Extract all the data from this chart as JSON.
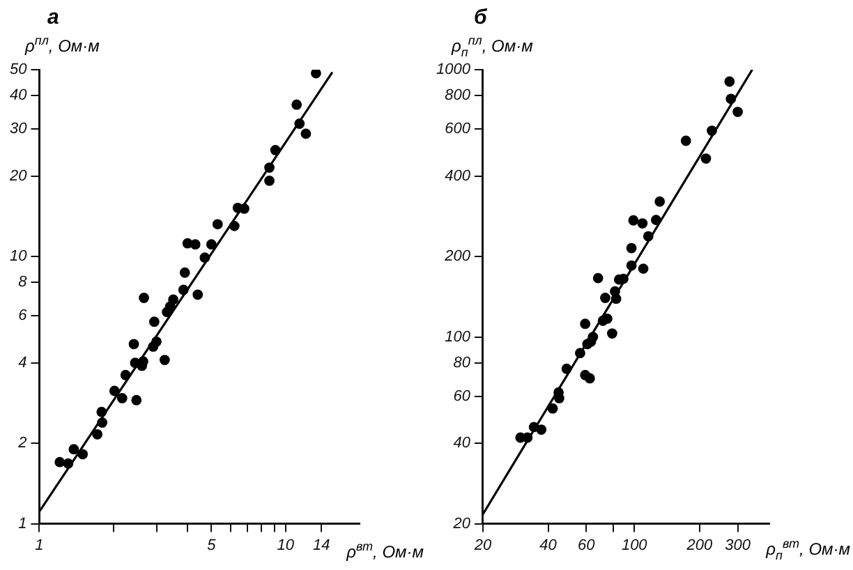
{
  "chart_data": [
    {
      "type": "scatter",
      "title": "а",
      "xlabel": "ρ$^{вт}$, Ом·м",
      "ylabel": "ρ$^{пл}$, Ом·м",
      "log": "xy",
      "marker": "circle",
      "xlim": [
        1,
        20
      ],
      "ylim": [
        1,
        50
      ],
      "xticks": [
        1,
        {
          "value": 2,
          "label": null
        },
        {
          "value": 3,
          "label": null
        },
        {
          "value": 4,
          "label": null
        },
        5,
        {
          "value": 6,
          "label": null
        },
        {
          "value": 7,
          "label": null
        },
        {
          "value": 8,
          "label": null
        },
        {
          "value": 9,
          "label": null
        },
        10,
        14
      ],
      "yticks": [
        1,
        2,
        4,
        6,
        8,
        10,
        20,
        30,
        40,
        50
      ],
      "series": [
        {
          "type": "scatter",
          "color": "#000000",
          "x": [
            13.3,
            11.1,
            11.4,
            12.1,
            9.1,
            8.6,
            8.6,
            6.4,
            6.8,
            6.2,
            5.3,
            5.0,
            4.7,
            4.0,
            4.3,
            3.9,
            3.85,
            4.4,
            3.5,
            3.4,
            3.3,
            2.66,
            2.93,
            2.99,
            2.9,
            3.23,
            2.42,
            2.45,
            2.61,
            2.64,
            2.24,
            2.02,
            2.17,
            2.48,
            1.79,
            1.8,
            1.72,
            1.38,
            1.5,
            1.21,
            1.31
          ],
          "values": [
            48.5,
            37,
            31.4,
            28.8,
            25,
            21.5,
            19.2,
            15.2,
            15.1,
            13,
            13.2,
            11.1,
            9.9,
            11.2,
            11.1,
            8.7,
            7.5,
            7.2,
            6.9,
            6.5,
            6.2,
            7.0,
            5.7,
            4.8,
            4.6,
            4.1,
            4.7,
            4.0,
            3.9,
            4.05,
            3.6,
            3.14,
            2.95,
            2.9,
            2.62,
            2.39,
            2.16,
            1.9,
            1.82,
            1.7,
            1.68
          ]
        },
        {
          "type": "line",
          "color": "#000000",
          "marker": "none",
          "line_style": "solid",
          "x": [
            1,
            15.5
          ],
          "values": [
            1.11,
            48.9
          ]
        }
      ]
    },
    {
      "type": "scatter",
      "title": "б",
      "xlabel": "ρ$_{п}$$^{вт}$, Ом·м",
      "ylabel": "ρ$_{п}$$^{пл}$, Ом·м",
      "log": "xy",
      "marker": "circle",
      "xlim": [
        20,
        420
      ],
      "ylim": [
        20,
        1000
      ],
      "xticks": [
        20,
        40,
        60,
        {
          "value": 80,
          "label": null
        },
        100,
        200,
        300
      ],
      "yticks": [
        20,
        40,
        60,
        80,
        100,
        200,
        400,
        600,
        800,
        1000
      ],
      "series": [
        {
          "type": "scatter",
          "color": "#000000",
          "x": [
            275,
            279,
            300,
            228,
            214,
            173,
            131,
            126,
            99,
            109,
            116,
            97,
            97,
            110,
            68,
            85,
            89,
            73.4,
            81.4,
            82.4,
            75,
            71.6,
            79,
            59.3,
            64.4,
            63.1,
            60.7,
            56.2,
            48.7,
            59.3,
            62.3,
            44.7,
            45,
            42,
            34.4,
            37.2,
            32.1,
            29.8
          ],
          "values": [
            903,
            778,
            695,
            591,
            465,
            542,
            321,
            274,
            273,
            266,
            238,
            215,
            185,
            180,
            166,
            164,
            165,
            140,
            148,
            139,
            117,
            115,
            103,
            112,
            100,
            96,
            94,
            87,
            76,
            72,
            70,
            62,
            59,
            54,
            46,
            45,
            42,
            42
          ]
        },
        {
          "type": "line",
          "color": "#000000",
          "marker": "none",
          "line_style": "solid",
          "x": [
            20,
            350
          ],
          "values": [
            21.7,
            1000
          ]
        }
      ]
    }
  ]
}
